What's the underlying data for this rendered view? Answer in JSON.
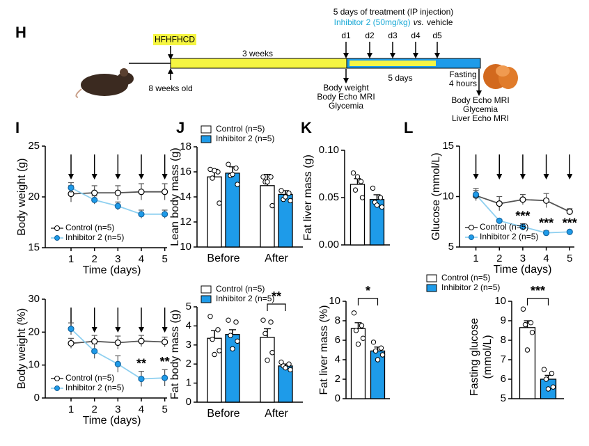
{
  "timeline": {
    "panel": "H",
    "diet": "HFHFHCD",
    "diet_duration": "3 weeks",
    "start_age": "8 weeks old",
    "treatment_title": "5 days of treatment (IP injection)",
    "treatment_drug": "Inhibitor 2 (50mg/kg)",
    "treatment_vs": "vs.",
    "treatment_control": "vehicle",
    "days": [
      "d1",
      "d2",
      "d3",
      "d4",
      "d5"
    ],
    "treatment_duration": "5 days",
    "fasting": [
      "Fasting",
      "4 hours"
    ],
    "baseline_measures": [
      "Body weight",
      "Body Echo MRI",
      "Glycemia"
    ],
    "final_measures": [
      "Body Echo MRI",
      "Glycemia",
      "Liver Echo MRI"
    ]
  },
  "panel_labels": [
    "I",
    "J",
    "K",
    "L"
  ],
  "chart_data": [
    {
      "type": "line",
      "ylabel": "Body weight (g)",
      "xlabel": "Time (days)",
      "x": [
        1,
        2,
        3,
        4,
        5
      ],
      "xlim": [
        -0.1,
        5.1
      ],
      "xticks": [
        1,
        2,
        3,
        4,
        5
      ],
      "ylim": [
        15,
        25
      ],
      "yticks": [
        15,
        20,
        25
      ],
      "legend": "lower left",
      "series": [
        {
          "name": "Control (n=5)",
          "color": "#ffffff",
          "line_color": "#555555",
          "values": [
            20.3,
            20.4,
            20.4,
            20.5,
            20.5
          ],
          "errors": [
            0.8,
            0.7,
            0.7,
            0.8,
            0.8
          ]
        },
        {
          "name": "Inhibitor 2 (n=5)",
          "color": "#1e9be9",
          "line_color": "#8fd0f0",
          "values": [
            20.9,
            19.7,
            19.1,
            18.3,
            18.3
          ],
          "errors": [
            0.5,
            0.4,
            0.4,
            0.4,
            0.4
          ]
        }
      ]
    },
    {
      "type": "line",
      "ylabel": "Body weight (%)",
      "xlabel": "Time (days)",
      "x": [
        1,
        2,
        3,
        4,
        5
      ],
      "xlim": [
        -0.1,
        5.1
      ],
      "xticks": [
        1,
        2,
        3,
        4,
        5
      ],
      "ylim": [
        0,
        30
      ],
      "yticks": [
        0,
        10,
        20,
        30
      ],
      "legend": "lower left",
      "annotations": [
        null,
        null,
        null,
        "**",
        "**"
      ],
      "series": [
        {
          "name": "Control (n=5)",
          "color": "#ffffff",
          "line_color": "#555555",
          "values": [
            16.6,
            17.2,
            16.8,
            17.3,
            17.0
          ],
          "errors": [
            1.5,
            1.8,
            2.0,
            1.7,
            1.5
          ]
        },
        {
          "name": "Inhibitor 2 (n=5)",
          "color": "#1e9be9",
          "line_color": "#8fd0f0",
          "values": [
            21.0,
            14.2,
            10.3,
            5.8,
            6.1
          ],
          "errors": [
            1.8,
            2.2,
            2.5,
            2.3,
            2.5
          ]
        }
      ]
    },
    {
      "type": "bar",
      "ylabel": "Lean body mass (g)",
      "categories": [
        "Before",
        "After"
      ],
      "ylim": [
        10,
        18
      ],
      "yticks": [
        10,
        12,
        14,
        16,
        18
      ],
      "legend": "above",
      "series": [
        {
          "name": "Control (n=5)",
          "color": "#ffffff",
          "values": [
            15.6,
            14.9
          ],
          "errors": [
            0.6,
            0.9
          ],
          "points": [
            [
              16.2,
              16.0,
              15.5,
              13.5,
              16.1
            ],
            [
              15.6,
              15.6,
              15.2,
              13.3,
              15.2
            ]
          ]
        },
        {
          "name": "Inhibitor 2 (n=5)",
          "color": "#1e9be9",
          "values": [
            15.9,
            14.2
          ],
          "errors": [
            0.5,
            0.3
          ],
          "points": [
            [
              16.6,
              16.3,
              15.7,
              15.0,
              15.8
            ],
            [
              14.5,
              14.3,
              13.8,
              13.7,
              14.0
            ]
          ]
        }
      ]
    },
    {
      "type": "bar",
      "ylabel": "Fat body mass (g)",
      "categories": [
        "Before",
        "After"
      ],
      "ylim": [
        0,
        5
      ],
      "yticks": [
        0,
        1,
        2,
        3,
        4,
        5
      ],
      "legend": "above",
      "annotations": [
        null,
        "**"
      ],
      "series": [
        {
          "name": "Control (n=5)",
          "color": "#ffffff",
          "values": [
            3.35,
            3.4
          ],
          "errors": [
            0.4,
            0.45
          ],
          "points": [
            [
              4.5,
              3.8,
              3.3,
              2.7,
              2.5
            ],
            [
              4.3,
              4.2,
              3.6,
              2.6,
              2.2
            ]
          ]
        },
        {
          "name": "Inhibitor 2 (n=5)",
          "color": "#1e9be9",
          "values": [
            3.55,
            1.9
          ],
          "errors": [
            0.25,
            0.1
          ],
          "points": [
            [
              4.3,
              4.2,
              3.5,
              3.2,
              2.8
            ],
            [
              2.1,
              2.0,
              1.9,
              1.7,
              1.8
            ]
          ]
        }
      ]
    },
    {
      "type": "bar",
      "ylabel": "Fat liver mass (g)",
      "ylim": [
        0,
        0.1
      ],
      "yticks": [
        {
          "value": 0,
          "label": "0.00"
        },
        0.05,
        {
          "value": 0.1,
          "label": "0.10"
        }
      ],
      "series": [
        {
          "color": "#ffffff",
          "values": [
            0.064
          ],
          "errors": [
            0.006
          ],
          "points": [
            [
              0.076,
              0.067,
              0.058,
              0.05,
              0.072
            ]
          ]
        },
        {
          "color": "#1e9be9",
          "values": [
            0.048
          ],
          "errors": [
            0.005
          ],
          "points": [
            [
              0.06,
              0.05,
              0.045,
              0.04,
              0.042
            ]
          ]
        }
      ]
    },
    {
      "type": "bar",
      "ylabel": "Fat liver mass (%)",
      "ylim": [
        0,
        10
      ],
      "yticks": [
        0,
        2,
        4,
        6,
        8,
        10
      ],
      "annotations": [
        "*"
      ],
      "series": [
        {
          "color": "#ffffff",
          "values": [
            7.2
          ],
          "errors": [
            0.6
          ],
          "points": [
            [
              8.8,
              7.5,
              7.0,
              6.2,
              5.6
            ]
          ]
        },
        {
          "color": "#1e9be9",
          "values": [
            4.9
          ],
          "errors": [
            0.4
          ],
          "points": [
            [
              5.8,
              5.2,
              4.9,
              4.5,
              4.0
            ]
          ]
        }
      ]
    },
    {
      "type": "line",
      "ylabel": "Glucose (mmol/L)",
      "xlabel": "Time (days)",
      "x": [
        1,
        2,
        3,
        4,
        5
      ],
      "xlim": [
        0.3,
        5.2
      ],
      "xticks": [
        1,
        2,
        3,
        4,
        5
      ],
      "ylim": [
        5,
        15
      ],
      "yticks": [
        5,
        10,
        15
      ],
      "legend": "lower left",
      "annotations": [
        null,
        null,
        "***",
        "***",
        "***"
      ],
      "series": [
        {
          "name": "Control (n=5)",
          "color": "#ffffff",
          "line_color": "#555555",
          "values": [
            10.1,
            9.3,
            9.7,
            9.6,
            8.5
          ],
          "errors": [
            0.5,
            0.7,
            0.5,
            0.7,
            0.3
          ]
        },
        {
          "name": "Inhibitor 2 (n=5)",
          "color": "#1e9be9",
          "line_color": "#8fd0f0",
          "values": [
            10.2,
            7.6,
            7.0,
            6.4,
            6.5
          ],
          "errors": [
            0.6,
            0.1,
            0.3,
            0.2,
            0.1
          ]
        }
      ]
    },
    {
      "type": "bar",
      "ylabel": [
        "Fasting glucose",
        "(mmol/L)"
      ],
      "ylim": [
        5,
        10
      ],
      "yticks": [
        5,
        6,
        7,
        8,
        9,
        10
      ],
      "legend": "above left",
      "annotations": [
        "***"
      ],
      "series": [
        {
          "name": "Control (n=5)",
          "color": "#ffffff",
          "values": [
            8.65
          ],
          "errors": [
            0.35
          ],
          "points": [
            [
              9.6,
              8.9,
              8.8,
              8.4,
              7.5
            ]
          ]
        },
        {
          "name": "Inhibitor 2 (n=5)",
          "color": "#1e9be9",
          "values": [
            6.0
          ],
          "errors": [
            0.2
          ],
          "points": [
            [
              6.5,
              6.3,
              6.0,
              5.6,
              5.5
            ]
          ]
        }
      ]
    }
  ]
}
